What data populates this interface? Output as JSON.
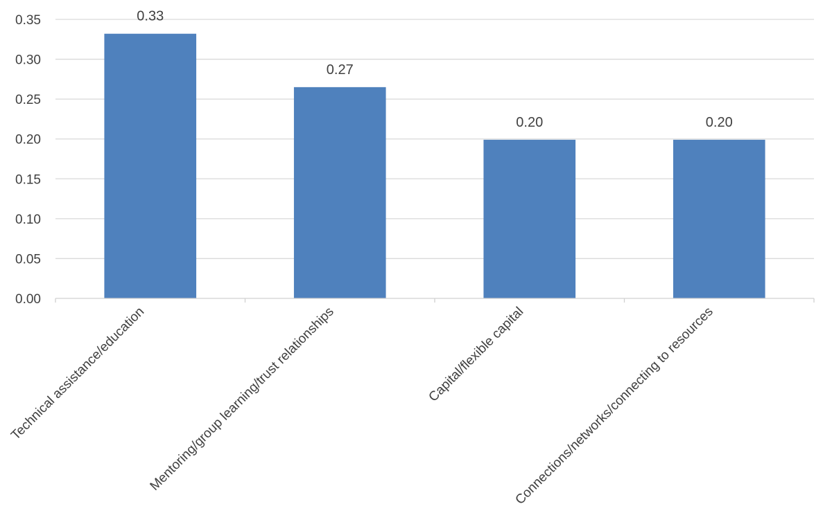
{
  "chart_data": {
    "type": "bar",
    "categories": [
      "Technical assistance/education",
      "Mentoring/group learning/trust relationships",
      "Capital/flexible capital",
      "Connections/networks/connecting to resources"
    ],
    "values": [
      0.332,
      0.265,
      0.199,
      0.199
    ],
    "data_labels": [
      "0.33",
      "0.27",
      "0.20",
      "0.20"
    ],
    "y_ticks": [
      "0.00",
      "0.05",
      "0.10",
      "0.15",
      "0.20",
      "0.25",
      "0.30",
      "0.35"
    ],
    "title": "",
    "xlabel": "",
    "ylabel": "",
    "ylim": [
      0,
      0.35
    ],
    "grid": true,
    "legend": "none",
    "bar_color": "#4f81bd"
  }
}
